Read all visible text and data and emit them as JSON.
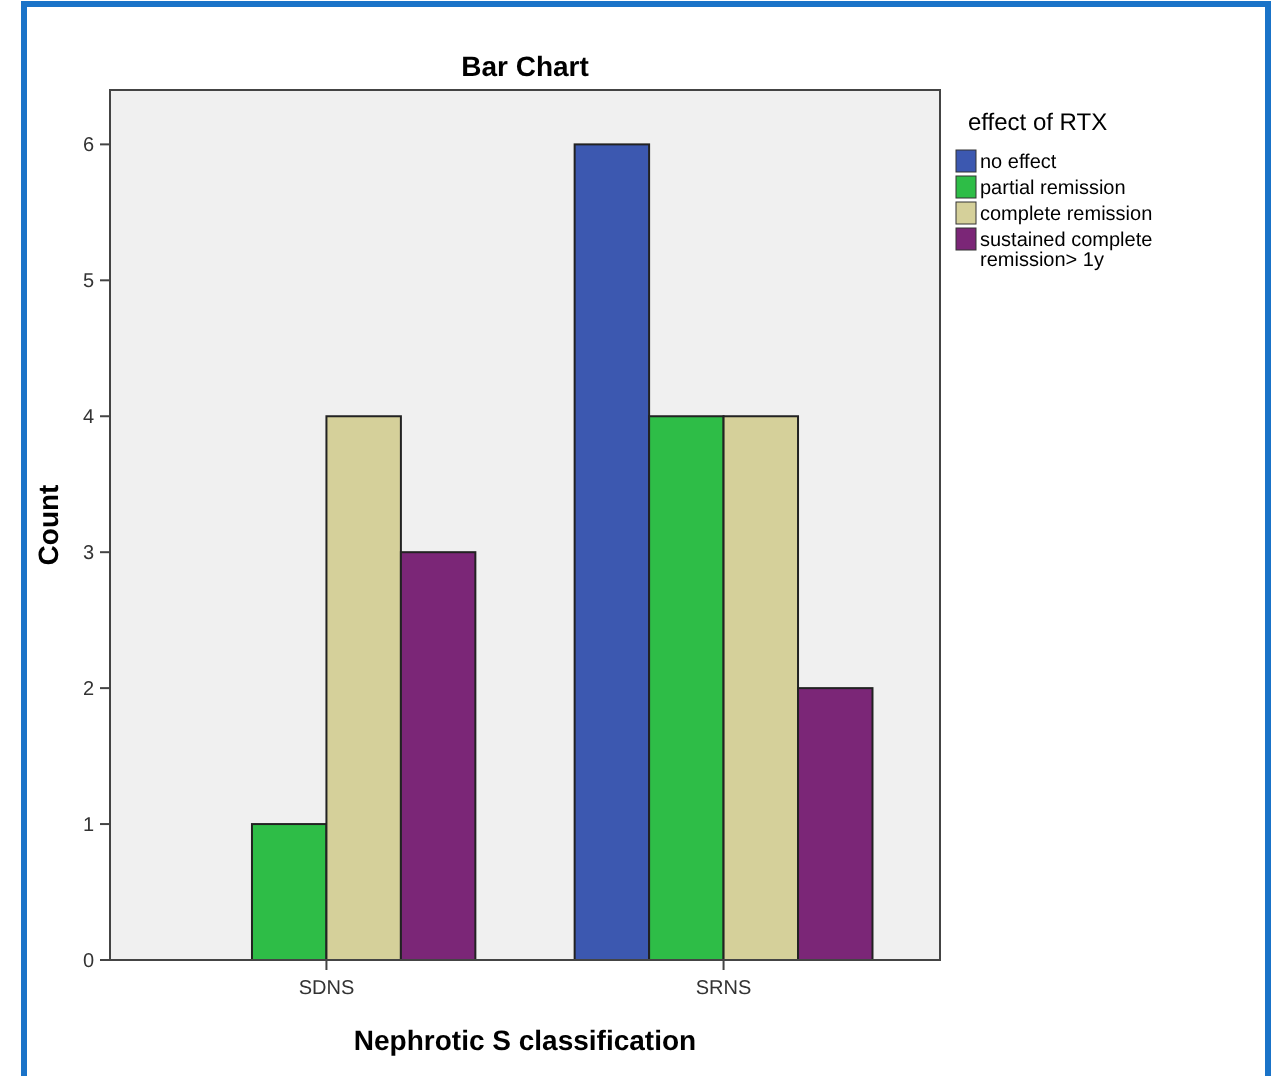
{
  "chart_data": {
    "type": "bar",
    "title": "Bar Chart",
    "xlabel": "Nephrotic S classification",
    "ylabel": "Count",
    "legend_title": "effect of RTX",
    "categories": [
      "SDNS",
      "SRNS"
    ],
    "series": [
      {
        "name": "no effect",
        "color": "#3c58b0",
        "values": [
          0,
          6
        ]
      },
      {
        "name": "partial remission",
        "color": "#2ebd47",
        "values": [
          1,
          4
        ]
      },
      {
        "name": "complete remission",
        "color": "#d5d09a",
        "values": [
          4,
          4
        ]
      },
      {
        "name": "sustained complete remission> 1y",
        "color": "#7b2677",
        "values": [
          3,
          2
        ]
      }
    ],
    "ylim": [
      0,
      6.4
    ],
    "yticks": [
      0,
      1,
      2,
      3,
      4,
      5,
      6
    ],
    "grid": false,
    "legend": "top right"
  }
}
